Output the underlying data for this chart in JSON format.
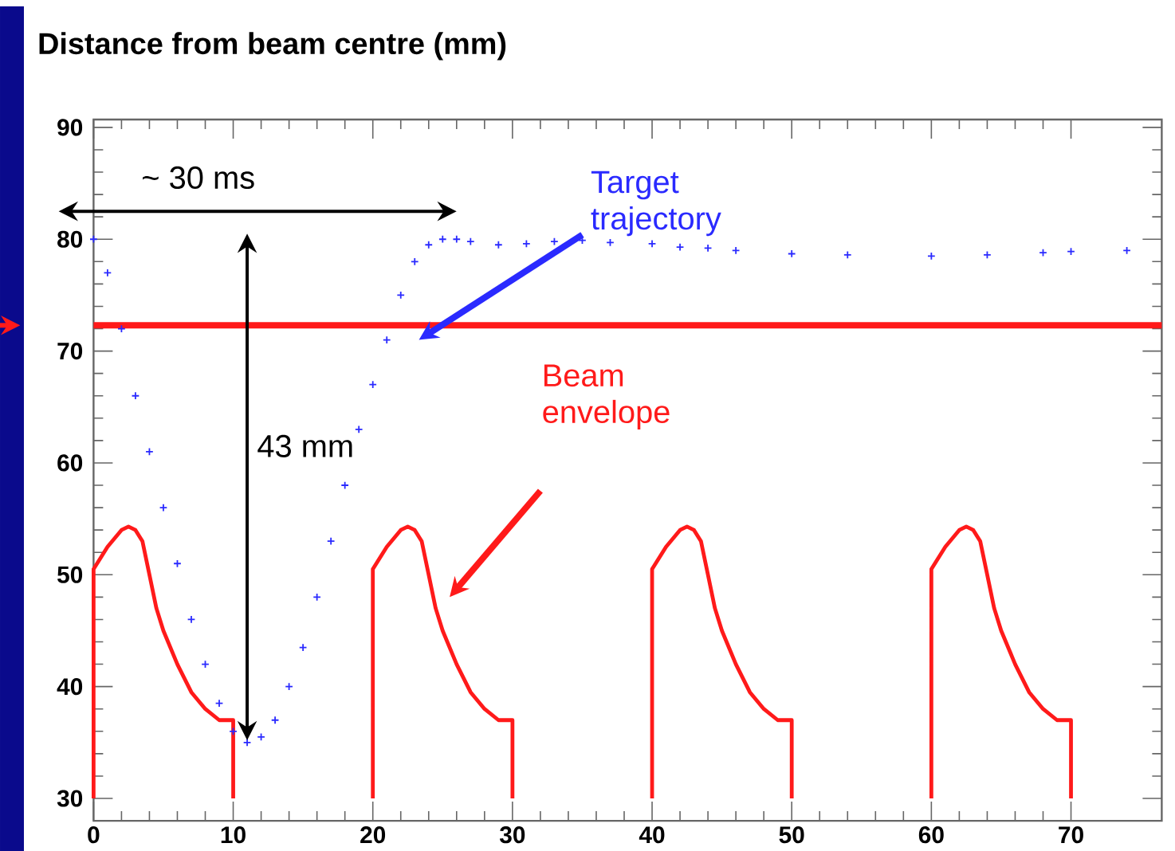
{
  "chart_data": {
    "type": "scatter",
    "title": "Distance from beam centre (mm)",
    "xlim": [
      0,
      76.5
    ],
    "ylim": [
      28,
      90.7
    ],
    "xticks": [
      0,
      10,
      20,
      30,
      40,
      50,
      60,
      70
    ],
    "yticks": [
      30,
      40,
      50,
      60,
      70,
      80,
      90
    ],
    "series": [
      {
        "name": "Target trajectory",
        "color": "#2a2aff",
        "marker": "cross",
        "x": [
          0,
          1,
          2,
          3,
          4,
          5,
          6,
          7,
          8,
          9,
          10,
          11,
          12,
          13,
          14,
          15,
          16,
          17,
          18,
          19,
          20,
          21,
          22,
          23,
          24,
          25,
          26,
          27,
          29,
          31,
          33,
          35,
          37,
          40,
          42,
          44,
          46,
          50,
          54,
          60,
          64,
          68,
          70,
          74
        ],
        "values": [
          80,
          77,
          72,
          66,
          61,
          56,
          51,
          46,
          42,
          38.5,
          36,
          35,
          35.5,
          37,
          40,
          43.5,
          48,
          53,
          58,
          63,
          67,
          71,
          75,
          78,
          79.5,
          80,
          80,
          79.8,
          79.5,
          79.6,
          79.8,
          79.9,
          79.7,
          79.6,
          79.3,
          79.2,
          79,
          78.7,
          78.6,
          78.5,
          78.6,
          78.8,
          78.9,
          79
        ]
      },
      {
        "type": "line",
        "name": "Beam envelope",
        "color": "#ff1a1a",
        "line_style": "solid",
        "x": [
          0,
          0,
          1,
          2,
          2.5,
          3,
          3.5,
          4,
          4.5,
          5,
          6,
          7,
          8,
          9,
          10,
          10,
          15,
          20,
          20,
          21,
          22,
          22.5,
          23,
          23.5,
          24,
          24.5,
          25,
          26,
          27,
          28,
          29,
          30,
          30,
          35,
          40,
          40,
          41,
          42,
          42.5,
          43,
          43.5,
          44,
          44.5,
          45,
          46,
          47,
          48,
          49,
          50,
          50,
          55,
          60,
          60,
          61,
          62,
          62.5,
          63,
          63.5,
          64,
          64.5,
          65,
          66,
          67,
          68,
          69,
          70,
          70
        ],
        "values": [
          30,
          50.5,
          52.5,
          54,
          54.3,
          54,
          53,
          50,
          47,
          45,
          42,
          39.5,
          38,
          37,
          37,
          30,
          null,
          30,
          50.5,
          52.5,
          54,
          54.3,
          54,
          53,
          50,
          47,
          45,
          42,
          39.5,
          38,
          37,
          37,
          30,
          null,
          30,
          50.5,
          52.5,
          54,
          54.3,
          54,
          53,
          50,
          47,
          45,
          42,
          39.5,
          38,
          37,
          37,
          30,
          null,
          30,
          50.5,
          52.5,
          54,
          54.3,
          54,
          53,
          50,
          47,
          45,
          42,
          39.5,
          38,
          37,
          37,
          30
        ]
      }
    ],
    "ref_lines": [
      {
        "axis": "y",
        "value": 72.3,
        "color": "#ff1a1a"
      }
    ],
    "annotations": [
      "~ 30 ms",
      "43 mm"
    ]
  }
}
